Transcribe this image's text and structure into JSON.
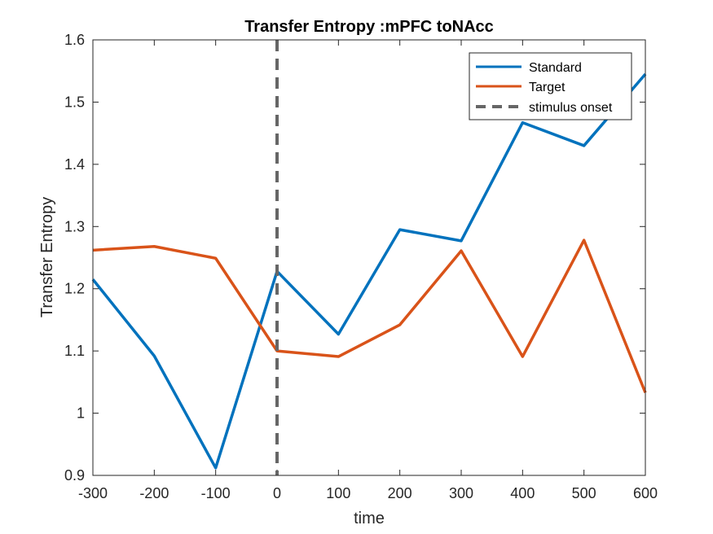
{
  "chart_data": {
    "type": "line",
    "title": "Transfer Entropy :mPFC toNAcc",
    "xlabel": "time",
    "ylabel": "Transfer Entropy",
    "xlim": [
      -300,
      600
    ],
    "ylim": [
      0.9,
      1.6
    ],
    "xticks": [
      -300,
      -200,
      -100,
      0,
      100,
      200,
      300,
      400,
      500,
      600
    ],
    "yticks": [
      0.9,
      1,
      1.1,
      1.2,
      1.3,
      1.4,
      1.5,
      1.6
    ],
    "xtick_labels": [
      "-300",
      "-200",
      "-100",
      "0",
      "100",
      "200",
      "300",
      "400",
      "500",
      "600"
    ],
    "ytick_labels": [
      "0.9",
      "1",
      "1.1",
      "1.2",
      "1.3",
      "1.4",
      "1.5",
      "1.6"
    ],
    "x": [
      -300,
      -200,
      -100,
      0,
      100,
      200,
      300,
      400,
      500,
      600
    ],
    "series": [
      {
        "name": "Standard",
        "color": "#0072BD",
        "values": [
          1.215,
          1.092,
          0.912,
          1.228,
          1.127,
          1.295,
          1.277,
          1.467,
          1.43,
          1.545
        ]
      },
      {
        "name": "Target",
        "color": "#D95319",
        "values": [
          1.262,
          1.268,
          1.249,
          1.1,
          1.091,
          1.142,
          1.261,
          1.091,
          1.278,
          1.033
        ]
      }
    ],
    "vline": {
      "name": "stimulus onset",
      "x": 0,
      "color": "#666666",
      "style": "dashed"
    },
    "grid": false,
    "legend_position": "top-right"
  }
}
